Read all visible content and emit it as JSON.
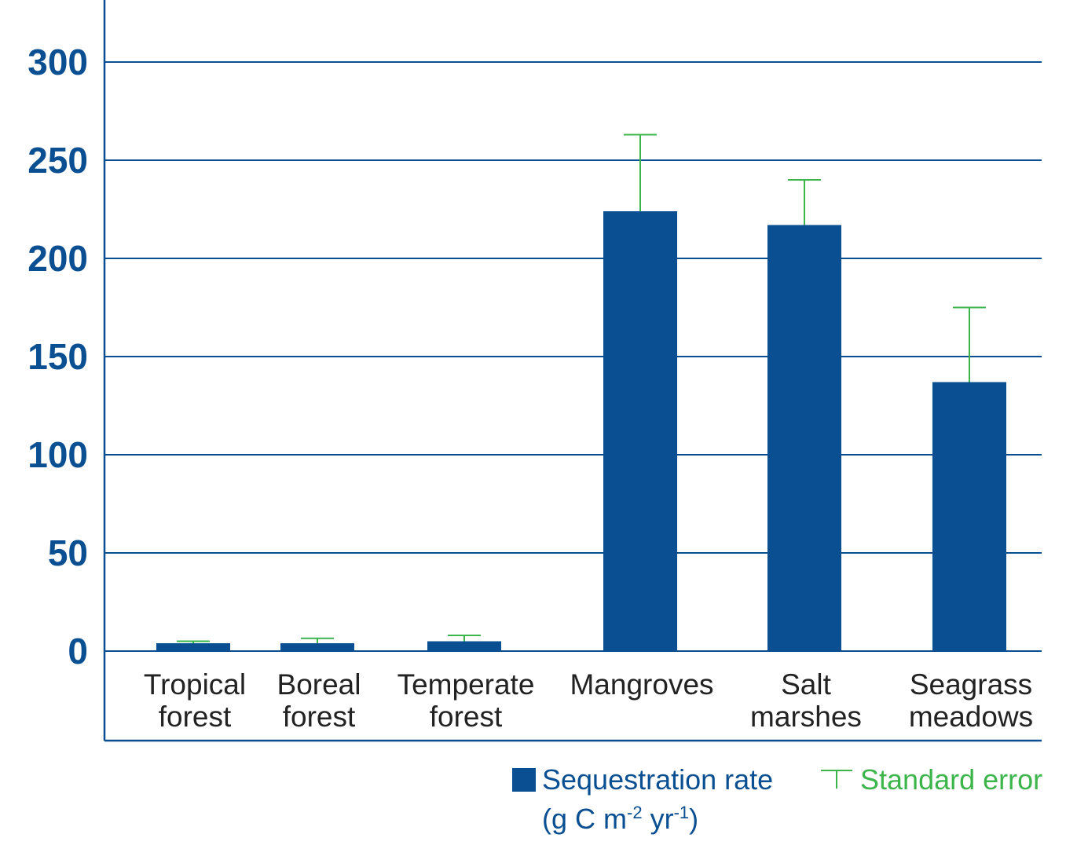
{
  "chart_data": {
    "type": "bar",
    "categories": [
      [
        "Tropical",
        "forest"
      ],
      [
        "Boreal",
        "forest"
      ],
      [
        "Temperate",
        "forest"
      ],
      [
        "Mangroves"
      ],
      [
        "Salt",
        "marshes"
      ],
      [
        "Seagrass",
        "meadows"
      ]
    ],
    "series": [
      {
        "name": "Sequestration rate (g C m-2 yr-1)",
        "values": [
          4,
          4,
          5,
          224,
          217,
          137
        ],
        "standard_error": [
          1,
          2.5,
          3,
          39,
          23,
          38
        ]
      }
    ],
    "yticks": [
      0,
      50,
      100,
      150,
      200,
      250,
      300
    ],
    "ylim": [
      0,
      330
    ],
    "grid": true,
    "legend_position": "bottom-right",
    "colors": {
      "bar": "#0a4f92",
      "error": "#3cb54a",
      "axis": "#0a4f92"
    }
  },
  "legend": {
    "sequestration_line1": "Sequestration rate",
    "sequestration_line2_prefix": "(g C m",
    "sequestration_sup1": "-2",
    "sequestration_mid": " yr",
    "sequestration_sup2": "-1",
    "sequestration_suffix": ")",
    "error_label": "Standard error"
  }
}
